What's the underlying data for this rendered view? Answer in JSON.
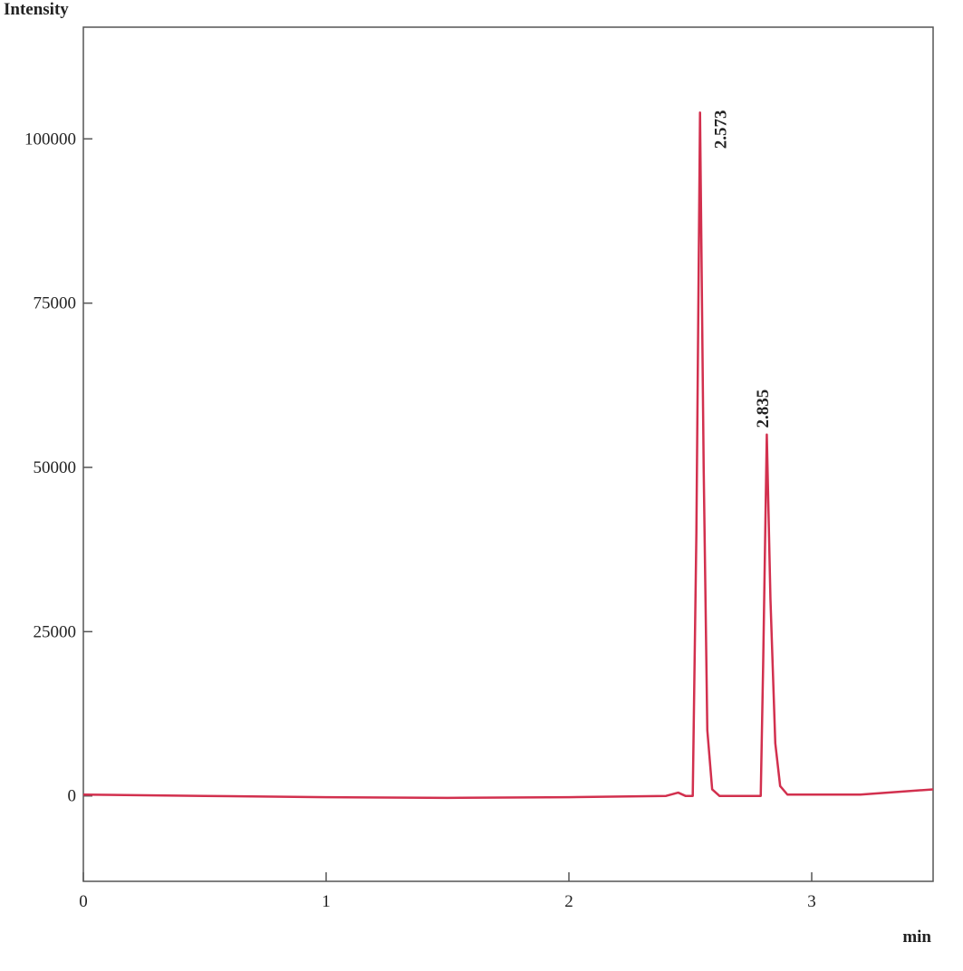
{
  "chart_data": {
    "type": "line",
    "y_label": "Intensity",
    "x_label": "min",
    "xlim": [
      0,
      3.5
    ],
    "xticks": [
      0,
      1,
      2,
      3
    ],
    "ylim": [
      -13000,
      117000
    ],
    "yticks": [
      0,
      25000,
      50000,
      75000,
      100000
    ],
    "series": [
      {
        "color": "#d2304e",
        "x": [
          0,
          0.5,
          1.0,
          1.5,
          2.0,
          2.4,
          2.45,
          2.48,
          2.51,
          2.525,
          2.54,
          2.555,
          2.57,
          2.59,
          2.62,
          2.7,
          2.79,
          2.8,
          2.815,
          2.83,
          2.85,
          2.87,
          2.9,
          3.2,
          3.5
        ],
        "values": [
          200,
          0,
          -200,
          -300,
          -200,
          0,
          500,
          0,
          0,
          40000,
          104000,
          50000,
          10000,
          1000,
          0,
          0,
          0,
          20000,
          55000,
          30000,
          8000,
          1500,
          200,
          200,
          1000
        ]
      }
    ],
    "annotations": [
      {
        "text": "2.573",
        "x": 2.647,
        "y": 98500
      },
      {
        "text": "2.835",
        "x": 2.82,
        "y": 56000
      }
    ]
  }
}
